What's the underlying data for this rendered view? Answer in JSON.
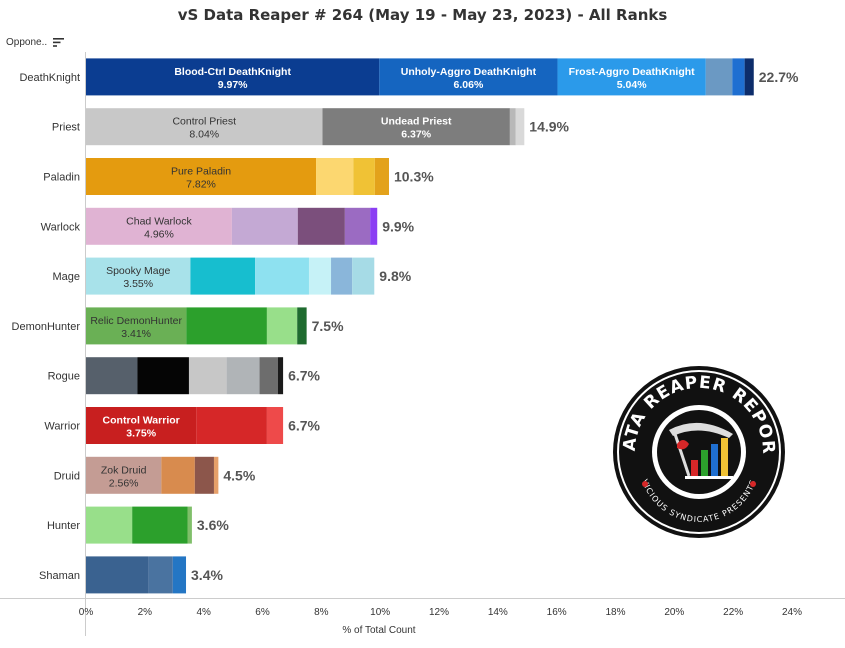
{
  "header": {
    "title": "vS Data Reaper # 264 (May 19 - May 23, 2023) - All Ranks",
    "row_header": "Oppone.."
  },
  "logo": {
    "arc_top": "DATA REAPER REPORT",
    "arc_bottom": "VICIOUS SYNDICATE PRESENTS"
  },
  "colors": {
    "axis": "#cccccc",
    "text": "#333333",
    "total_label": "#555555"
  },
  "chart_data": {
    "type": "bar",
    "orientation": "horizontal",
    "stacked": true,
    "title": "vS Data Reaper # 264 (May 19 - May 23, 2023) - All Ranks",
    "xlabel": "% of Total Count",
    "ylabel": "Oppone..",
    "xlim": [
      0,
      24
    ],
    "xticks": [
      "0%",
      "2%",
      "4%",
      "6%",
      "8%",
      "10%",
      "12%",
      "14%",
      "16%",
      "18%",
      "20%",
      "22%",
      "24%"
    ],
    "grid": false,
    "rows": [
      {
        "class": "DeathKnight",
        "total": "22.7%",
        "segments": [
          {
            "value": 9.97,
            "color": "#0b3d91",
            "label": "Blood-Ctrl DeathKnight",
            "pct": "9.97%",
            "text_color": "#ffffff",
            "bold": true
          },
          {
            "value": 6.06,
            "color": "#1565c0",
            "label": "Unholy-Aggro DeathKnight",
            "pct": "6.06%",
            "text_color": "#ffffff",
            "bold": true
          },
          {
            "value": 5.04,
            "color": "#2b9aea",
            "label": "Frost-Aggro DeathKnight",
            "pct": "5.04%",
            "text_color": "#ffffff",
            "bold": true
          },
          {
            "value": 0.9,
            "color": "#6b99c3"
          },
          {
            "value": 0.42,
            "color": "#1f6fd1"
          },
          {
            "value": 0.31,
            "color": "#0d2d6b"
          }
        ]
      },
      {
        "class": "Priest",
        "total": "14.9%",
        "segments": [
          {
            "value": 8.04,
            "color": "#c8c8c8",
            "label": "Control Priest",
            "pct": "8.04%",
            "text_color": "#333333",
            "bold": false
          },
          {
            "value": 6.37,
            "color": "#7d7d7d",
            "label": "Undead Priest",
            "pct": "6.37%",
            "text_color": "#ffffff",
            "bold": true
          },
          {
            "value": 0.2,
            "color": "#b8b8b8"
          },
          {
            "value": 0.29,
            "color": "#d9d9d9"
          }
        ]
      },
      {
        "class": "Paladin",
        "total": "10.3%",
        "segments": [
          {
            "value": 7.82,
            "color": "#e49b0f",
            "label": "Pure Paladin",
            "pct": "7.82%",
            "text_color": "#333333",
            "bold": false
          },
          {
            "value": 1.27,
            "color": "#fcd770"
          },
          {
            "value": 0.73,
            "color": "#f0c235"
          },
          {
            "value": 0.48,
            "color": "#e3a21b"
          }
        ]
      },
      {
        "class": "Warlock",
        "total": "9.9%",
        "segments": [
          {
            "value": 4.96,
            "color": "#e0b3d3",
            "label": "Chad Warlock",
            "pct": "4.96%",
            "text_color": "#333333",
            "bold": false
          },
          {
            "value": 2.24,
            "color": "#c4a9d4"
          },
          {
            "value": 1.6,
            "color": "#7b4f7c"
          },
          {
            "value": 0.86,
            "color": "#9b6bc2"
          },
          {
            "value": 0.24,
            "color": "#8b3ff3"
          }
        ]
      },
      {
        "class": "Mage",
        "total": "9.8%",
        "segments": [
          {
            "value": 3.55,
            "color": "#a8e2ea",
            "label": "Spooky Mage",
            "pct": "3.55%",
            "text_color": "#333333",
            "bold": false
          },
          {
            "value": 2.2,
            "color": "#17becf"
          },
          {
            "value": 1.83,
            "color": "#8ee1f0"
          },
          {
            "value": 0.75,
            "color": "#c6f2f7"
          },
          {
            "value": 0.72,
            "color": "#8ab6da"
          },
          {
            "value": 0.75,
            "color": "#a6dbe6"
          }
        ]
      },
      {
        "class": "DemonHunter",
        "total": "7.5%",
        "segments": [
          {
            "value": 3.41,
            "color": "#6ab055",
            "label": "Relic DemonHunter",
            "pct": "3.41%",
            "text_color": "#333333",
            "bold": false
          },
          {
            "value": 2.74,
            "color": "#2ca02c"
          },
          {
            "value": 1.03,
            "color": "#98df8a"
          },
          {
            "value": 0.32,
            "color": "#1f6b2f"
          }
        ]
      },
      {
        "class": "Rogue",
        "total": "6.7%",
        "segments": [
          {
            "value": 1.75,
            "color": "#56606b"
          },
          {
            "value": 1.75,
            "color": "#050505"
          },
          {
            "value": 1.28,
            "color": "#c7c7c7"
          },
          {
            "value": 1.12,
            "color": "#b0b4b7"
          },
          {
            "value": 0.62,
            "color": "#6d6d6d"
          },
          {
            "value": 0.18,
            "color": "#1a1a1a"
          }
        ]
      },
      {
        "class": "Warrior",
        "total": "6.7%",
        "segments": [
          {
            "value": 3.75,
            "color": "#c81f1f",
            "label": "Control Warrior",
            "pct": "3.75%",
            "text_color": "#ffffff",
            "bold": true
          },
          {
            "value": 2.4,
            "color": "#d62728"
          },
          {
            "value": 0.55,
            "color": "#ee4a4a"
          }
        ]
      },
      {
        "class": "Druid",
        "total": "4.5%",
        "segments": [
          {
            "value": 2.56,
            "color": "#c49c94",
            "label": "Zok Druid",
            "pct": "2.56%",
            "text_color": "#333333",
            "bold": false
          },
          {
            "value": 1.14,
            "color": "#d88b4e"
          },
          {
            "value": 0.65,
            "color": "#8c564b"
          },
          {
            "value": 0.15,
            "color": "#e6a06a"
          }
        ]
      },
      {
        "class": "Hunter",
        "total": "3.6%",
        "segments": [
          {
            "value": 1.57,
            "color": "#98df8a"
          },
          {
            "value": 1.88,
            "color": "#2ca02c"
          },
          {
            "value": 0.15,
            "color": "#7fbf6a"
          }
        ]
      },
      {
        "class": "Shaman",
        "total": "3.4%",
        "segments": [
          {
            "value": 2.13,
            "color": "#3a6290"
          },
          {
            "value": 0.82,
            "color": "#4a73a0"
          },
          {
            "value": 0.45,
            "color": "#2476c4"
          }
        ]
      }
    ]
  }
}
